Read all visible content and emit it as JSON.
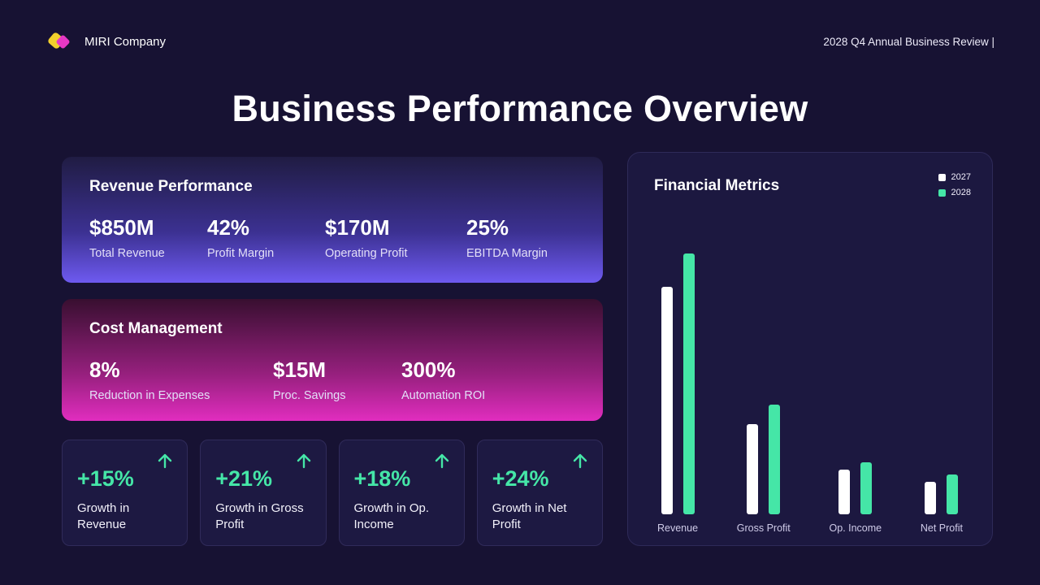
{
  "header": {
    "company": "MIRI Company",
    "review": "2028 Q4 Annual Business Review |"
  },
  "title": "Business Performance Overview",
  "revenue_card": {
    "title": "Revenue Performance",
    "metrics": [
      {
        "value": "$850M",
        "label": "Total Revenue"
      },
      {
        "value": "42%",
        "label": "Profit Margin"
      },
      {
        "value": "$170M",
        "label": "Operating Profit"
      },
      {
        "value": "25%",
        "label": "EBITDA Margin"
      }
    ]
  },
  "cost_card": {
    "title": "Cost Management",
    "metrics": [
      {
        "value": "8%",
        "label": "Reduction in Expenses"
      },
      {
        "value": "$15M",
        "label": "Proc. Savings"
      },
      {
        "value": "300%",
        "label": "Automation ROI"
      }
    ]
  },
  "growth_cards": [
    {
      "value": "+15%",
      "label": "Growth in Revenue"
    },
    {
      "value": "+21%",
      "label": "Growth in Gross Profit"
    },
    {
      "value": "+18%",
      "label": "Growth in Op. Income"
    },
    {
      "value": "+24%",
      "label": "Growth in Net Profit"
    }
  ],
  "chart_data": {
    "type": "bar",
    "title": "Financial Metrics",
    "categories": [
      "Revenue",
      "Gross Profit",
      "Op. Income",
      "Net Profit"
    ],
    "series": [
      {
        "name": "2027",
        "color": "#ffffff",
        "values": [
          740,
          295,
          145,
          105
        ]
      },
      {
        "name": "2028",
        "color": "#45e6a7",
        "values": [
          850,
          357,
          170,
          130
        ]
      }
    ],
    "ylim": [
      0,
      900
    ],
    "unit": "$M",
    "grid": false,
    "legend_position": "top-right"
  },
  "colors": {
    "background": "#171233",
    "accent_teal": "#45e6a7",
    "violet_gradient_end": "#6e5af0",
    "magenta_gradient_end": "#e12dbf",
    "logo_yellow": "#f2d02c",
    "logo_magenta": "#e638c4",
    "series_2027": "#ffffff",
    "series_2028": "#45e6a7"
  }
}
